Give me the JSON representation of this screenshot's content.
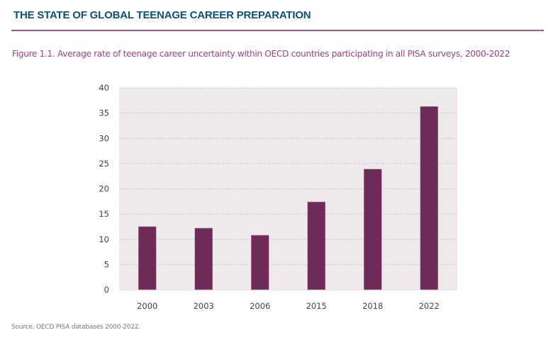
{
  "header": {
    "title": "THE STATE OF GLOBAL TEENAGE CAREER PREPARATION"
  },
  "figure": {
    "title": "Figure 1.1.  Average rate of teenage career uncertainty within OECD countries participating in all PISA surveys, 2000-2022",
    "source": "Source. OECD PISA databases 2000-2022."
  },
  "colors": {
    "bar": "#6d2c58",
    "plot_background": "#efe8ec",
    "gridline": "#b9b0b6",
    "header_title": "#0e4f7c",
    "figure_title": "#a83d8b",
    "rule": "#9b5a8c"
  },
  "chart_data": {
    "type": "bar",
    "title": "Average rate of teenage career uncertainty within OECD countries participating in all PISA surveys, 2000-2022",
    "xlabel": "",
    "ylabel": "",
    "categories": [
      "2000",
      "2003",
      "2006",
      "2015",
      "2018",
      "2022"
    ],
    "values": [
      12.5,
      12.2,
      10.8,
      17.4,
      23.9,
      36.3
    ],
    "ylim": [
      0,
      40
    ],
    "yticks": [
      0,
      5,
      10,
      15,
      20,
      25,
      30,
      35,
      40
    ],
    "grid": true,
    "legend": "none"
  }
}
